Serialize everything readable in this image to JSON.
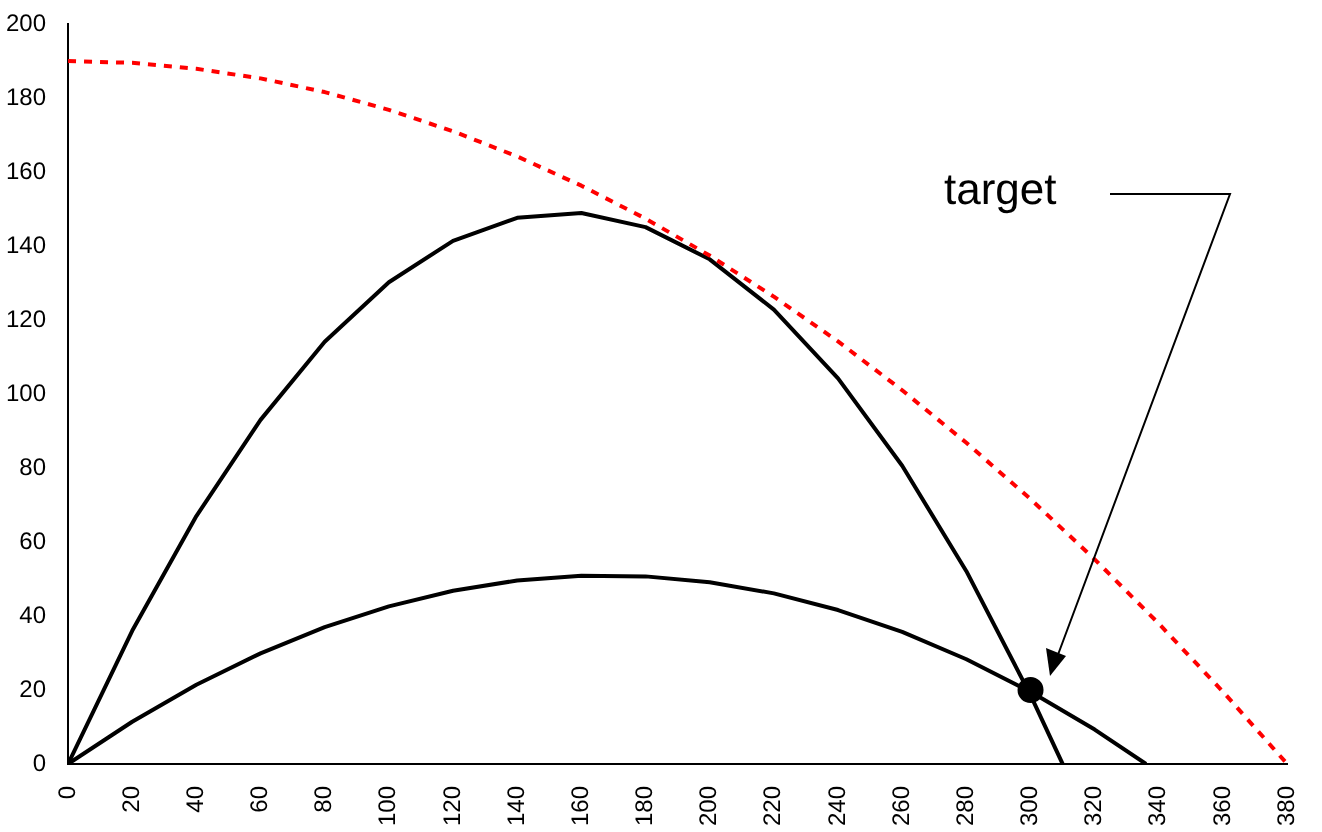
{
  "chart_data": {
    "type": "line",
    "xlim": [
      0,
      380
    ],
    "ylim": [
      0,
      200
    ],
    "xticks": [
      0,
      20,
      40,
      60,
      80,
      100,
      120,
      140,
      160,
      180,
      200,
      220,
      240,
      260,
      280,
      300,
      320,
      340,
      360,
      380
    ],
    "yticks": [
      0,
      20,
      40,
      60,
      80,
      100,
      120,
      140,
      160,
      180,
      200
    ],
    "grid": false,
    "legend": false,
    "marker": "none",
    "annotations": [
      "target"
    ],
    "series": [
      {
        "color": "#ff0000",
        "line_style": "dashed",
        "x": [
          0,
          20,
          40,
          60,
          80,
          100,
          120,
          140,
          160,
          180,
          200,
          220,
          240,
          260,
          280,
          300,
          320,
          340,
          360,
          380
        ],
        "values": [
          190,
          189.5,
          187.9,
          185.3,
          181.6,
          176.8,
          171,
          164.2,
          156.3,
          147.4,
          137.4,
          126.3,
          114.2,
          101,
          86.8,
          71.6,
          55.3,
          37.9,
          19.5,
          0
        ]
      },
      {
        "color": "#000000",
        "line_style": "solid",
        "x": [
          0,
          20,
          40,
          60,
          80,
          100,
          120,
          140,
          160,
          180,
          200,
          220,
          240,
          260,
          280,
          300,
          310
        ],
        "values": [
          0,
          36,
          67,
          93,
          114.1,
          130.2,
          141.4,
          147.6,
          148.9,
          145.1,
          136.4,
          122.8,
          104.2,
          80.6,
          52.1,
          18.6,
          0
        ]
      },
      {
        "color": "#000000",
        "line_style": "solid",
        "x": [
          0,
          20,
          40,
          60,
          80,
          100,
          120,
          140,
          160,
          180,
          200,
          220,
          240,
          260,
          280,
          300,
          320,
          336
        ],
        "values": [
          0,
          11.4,
          21.4,
          29.9,
          37,
          42.6,
          46.8,
          49.6,
          50.9,
          50.7,
          49.1,
          46.1,
          41.6,
          35.7,
          28.3,
          19.5,
          9.3,
          0
        ]
      },
      {
        "type": "scatter",
        "color": "#000000",
        "marker": "circle",
        "x": [
          300
        ],
        "values": [
          20
        ]
      }
    ]
  }
}
